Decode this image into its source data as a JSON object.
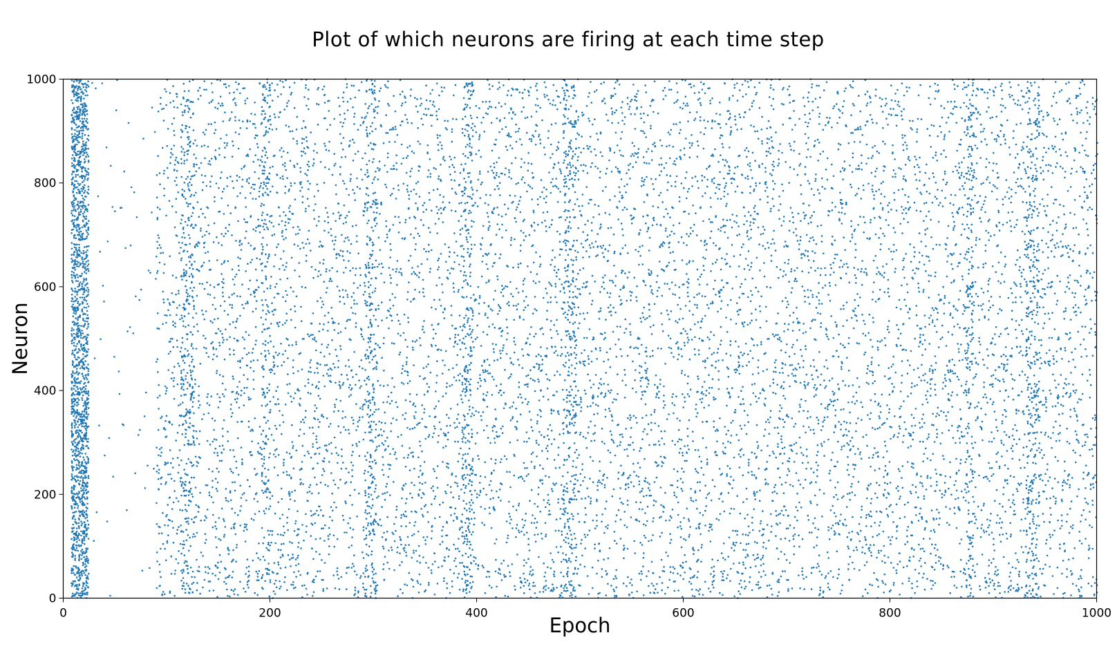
{
  "chart_data": {
    "type": "scatter",
    "title": "Plot of which neurons are firing at each time step",
    "xlabel": "Epoch",
    "ylabel": "Neuron",
    "xlim": [
      0,
      1000
    ],
    "ylim": [
      0,
      1000
    ],
    "x_ticks": [
      "0",
      "200",
      "400",
      "600",
      "800",
      "1000"
    ],
    "y_ticks": [
      "0",
      "200",
      "400",
      "600",
      "800",
      "1000"
    ],
    "grid": false,
    "series": [
      {
        "color": "#1f77b4",
        "marker": "dot",
        "description_free_note": "",
        "dense_columns": [
          {
            "x_range": [
              8,
              24
            ],
            "neurons_per_epoch": 95
          },
          {
            "x_range": [
              114,
              126
            ],
            "neurons_per_epoch": 22
          },
          {
            "x_range": [
              192,
              200
            ],
            "neurons_per_epoch": 20
          },
          {
            "x_range": [
              292,
              302
            ],
            "neurons_per_epoch": 24
          },
          {
            "x_range": [
              386,
              396
            ],
            "neurons_per_epoch": 22
          },
          {
            "x_range": [
              484,
              496
            ],
            "neurons_per_epoch": 22
          },
          {
            "x_range": [
              874,
              880
            ],
            "neurons_per_epoch": 24
          },
          {
            "x_range": [
              932,
              944
            ],
            "neurons_per_epoch": 22
          }
        ],
        "background_range": [
          28,
          1000
        ],
        "background_neurons_per_epoch": 11
      }
    ]
  }
}
